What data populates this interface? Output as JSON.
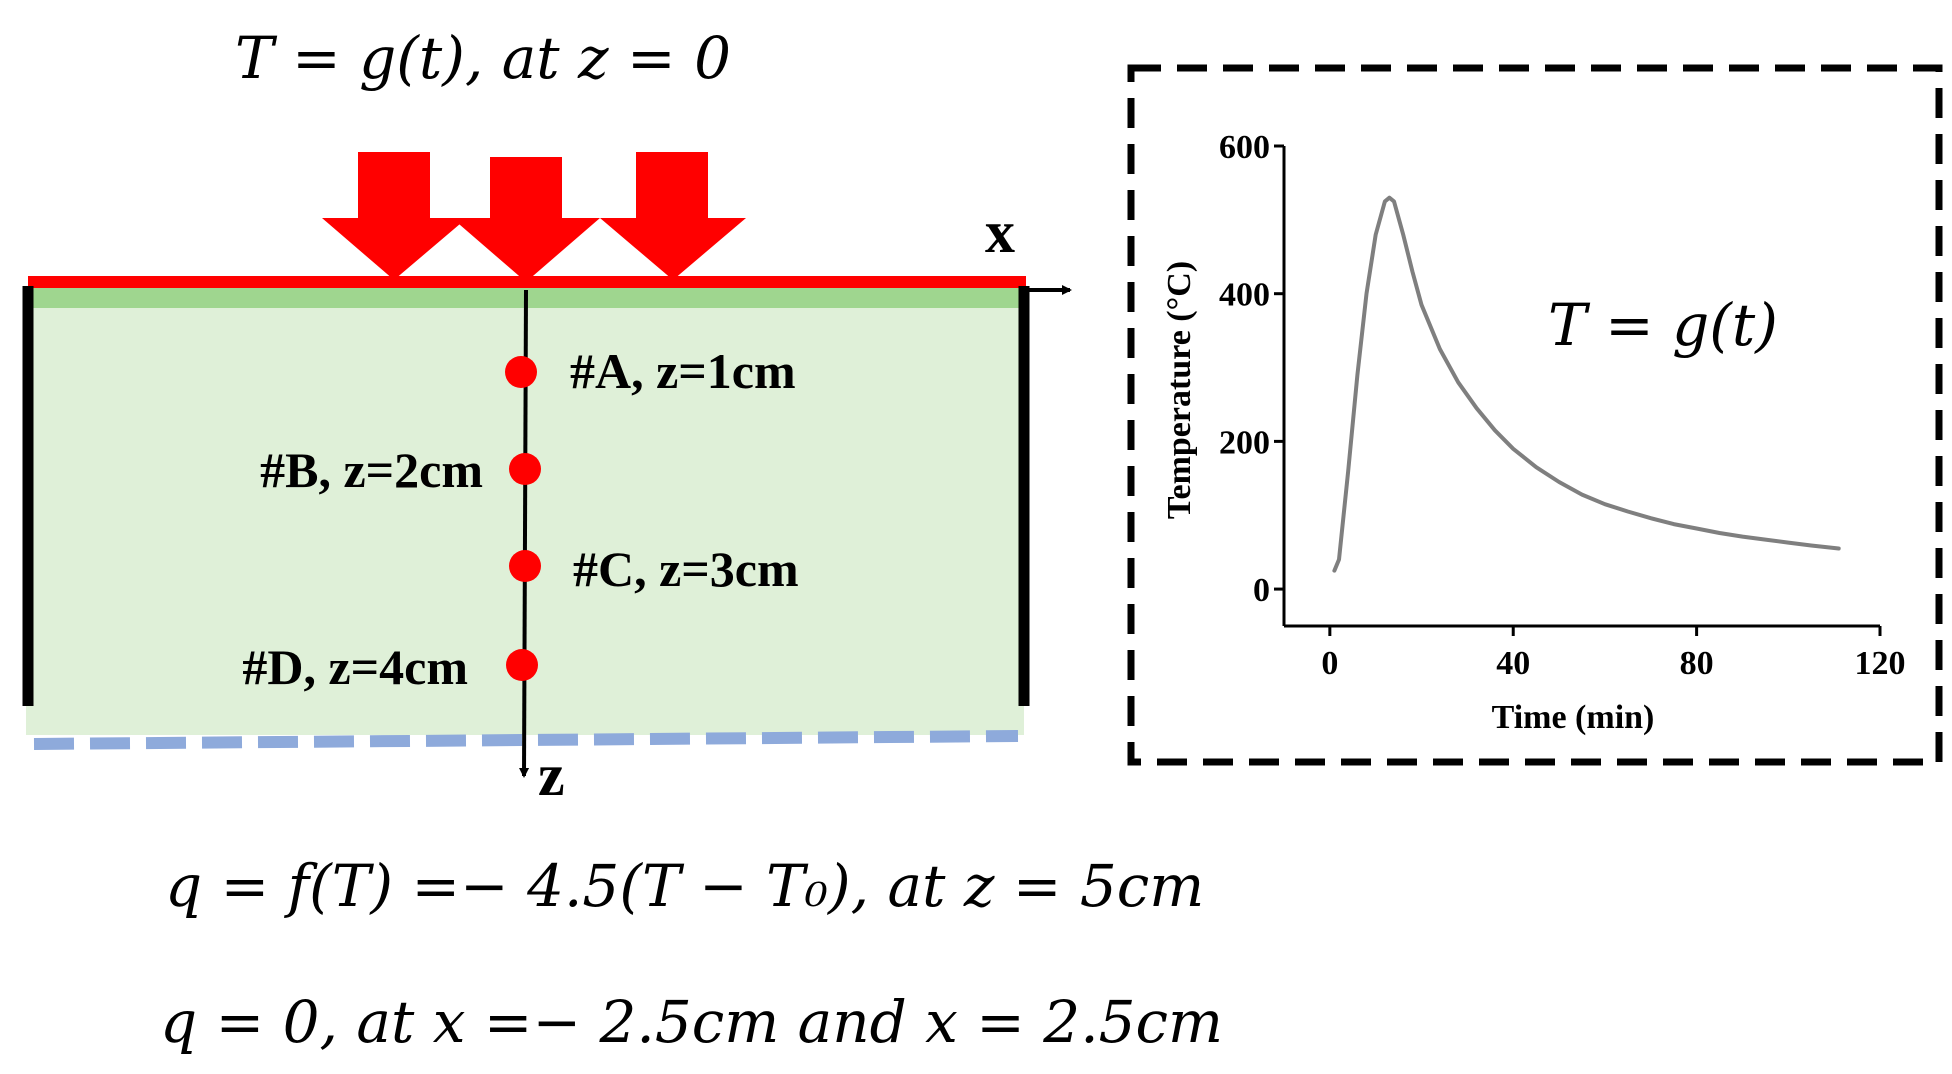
{
  "equations": {
    "top_boundary": "T = g(t),  at z = 0",
    "bottom_boundary": "q = f(T) =− 4.5(T − T₀),  at z = 5cm",
    "side_boundary": "q = 0, at x =− 2.5cm and x = 2.5cm",
    "chart_equation": "T = g(t)"
  },
  "axes": {
    "x_label": "x",
    "z_label": "z"
  },
  "points": [
    {
      "id": "A",
      "label": "#A, z=1cm",
      "z_cm": 1
    },
    {
      "id": "B",
      "label": "#B, z=2cm",
      "z_cm": 2
    },
    {
      "id": "C",
      "label": "#C, z=3cm",
      "z_cm": 3
    },
    {
      "id": "D",
      "label": "#D, z=4cm",
      "z_cm": 4
    }
  ],
  "colors": {
    "heat_arrow": "#ff0000",
    "top_boundary_line": "#ff0000",
    "domain_fill": "#dff0d8",
    "domain_top_band": "#9fd68f",
    "bottom_boundary_dash": "#8eaadb",
    "side_walls": "#000000",
    "measurement_point": "#ff0000",
    "curve": "#7f7f7f"
  },
  "chart_data": {
    "type": "line",
    "title": "",
    "xlabel": "Time (min)",
    "ylabel": "Temperature (°C)",
    "xlim": [
      -10,
      120
    ],
    "ylim": [
      -50,
      600
    ],
    "xticks": [
      0,
      40,
      80,
      120
    ],
    "yticks": [
      0,
      200,
      400,
      600
    ],
    "grid": false,
    "series": [
      {
        "x": [
          1,
          2,
          4,
          6,
          8,
          10,
          12,
          13,
          14,
          16,
          18,
          20,
          24,
          28,
          32,
          36,
          40,
          45,
          50,
          55,
          60,
          65,
          70,
          75,
          80,
          85,
          90,
          95,
          100,
          105,
          111
        ],
        "y": [
          25,
          40,
          160,
          290,
          400,
          480,
          525,
          530,
          525,
          480,
          430,
          385,
          325,
          280,
          245,
          215,
          190,
          165,
          145,
          128,
          115,
          105,
          96,
          88,
          82,
          76,
          71,
          67,
          63,
          59,
          55
        ]
      }
    ]
  }
}
